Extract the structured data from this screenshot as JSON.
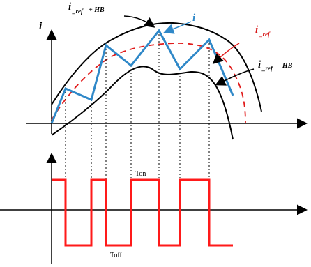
{
  "labels": {
    "axis_y": "i",
    "upper_prefix": "i",
    "upper_sub": "_ref",
    "upper_suffix": " + HB",
    "current": "i",
    "reference_prefix": "i",
    "reference_sub": "_ref",
    "lower_prefix": "i",
    "lower_sub": "_ref",
    "lower_suffix": " - HB",
    "ton": "Ton",
    "toff": "Toff"
  },
  "colors": {
    "current": "#2f88c8",
    "reference": "#e11b1b",
    "pulse": "#ff1a1a",
    "band": "#000000"
  }
}
